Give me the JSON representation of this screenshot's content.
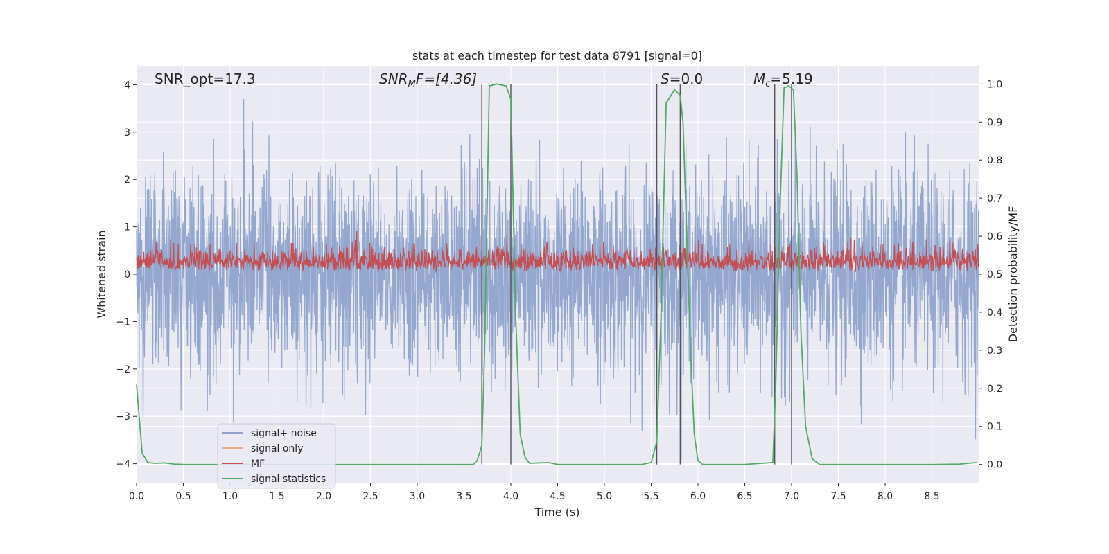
{
  "chart_data": {
    "type": "line",
    "title": "stats at each timestep for test data 8791 [signal=0]",
    "xlabel": "Time (s)",
    "ylabel": "Whitened strain",
    "ylabel_right": "Detection probability/MF",
    "xlim": [
      0.0,
      9.0
    ],
    "ylim": [
      -4.4,
      4.4
    ],
    "ylim_right": [
      -0.048,
      1.048
    ],
    "x_ticks": [
      "0.0",
      "0.5",
      "1.0",
      "1.5",
      "2.0",
      "2.5",
      "3.0",
      "3.5",
      "4.0",
      "4.5",
      "5.0",
      "5.5",
      "6.0",
      "6.5",
      "7.0",
      "7.5",
      "8.0",
      "8.5"
    ],
    "y_ticks": [
      "−4",
      "−3",
      "−2",
      "−1",
      "0",
      "1",
      "2",
      "3",
      "4"
    ],
    "y_ticks_right": [
      "0.0",
      "0.1",
      "0.2",
      "0.3",
      "0.4",
      "0.5",
      "0.6",
      "0.7",
      "0.8",
      "0.9",
      "1.0"
    ],
    "grid": true,
    "legend_position": "lower-left",
    "annotations": {
      "snr_opt": "SNR_opt=17.3",
      "snr_mf_main": "SNR",
      "snr_mf_sub": "M",
      "snr_mf_rest": "F=[4.36]",
      "s_main": "S",
      "s_rest": "=0.0",
      "mc_main": "M",
      "mc_sub": "c",
      "mc_rest": "=5.19"
    },
    "series": [
      {
        "name": "signal+ noise",
        "color": "#8ea3cc",
        "axis": "left",
        "note_render": "dense white-noise trace, |amplitude| up to ~4"
      },
      {
        "name": "signal only",
        "color": "#e9a987",
        "axis": "left",
        "values": []
      },
      {
        "name": "MF",
        "color": "#c44e52",
        "axis": "right",
        "range": [
          0.5,
          0.62
        ]
      },
      {
        "name": "signal statistics",
        "color": "#55a868",
        "axis": "right",
        "x": [
          0.0,
          0.06,
          0.12,
          0.2,
          0.3,
          0.4,
          0.5,
          0.7,
          1.0,
          1.5,
          2.0,
          2.5,
          3.0,
          3.5,
          3.6,
          3.64,
          3.69,
          3.72,
          3.77,
          3.85,
          3.95,
          4.0,
          4.05,
          4.1,
          4.15,
          4.2,
          4.3,
          4.4,
          4.5,
          5.0,
          5.4,
          5.5,
          5.56,
          5.6,
          5.66,
          5.75,
          5.81,
          5.84,
          5.88,
          5.92,
          5.96,
          6.0,
          6.05,
          6.5,
          6.8,
          6.83,
          6.88,
          6.92,
          6.97,
          7.02,
          7.06,
          7.1,
          7.15,
          7.22,
          7.3,
          7.4,
          7.6,
          8.0,
          8.5,
          8.8,
          8.98
        ],
        "values": [
          0.21,
          0.03,
          0.005,
          0.003,
          0.004,
          0.001,
          0.0,
          0.0,
          0.0,
          0.0,
          0.0,
          0.0,
          0.0,
          0.0,
          0.0,
          0.01,
          0.05,
          0.3,
          0.995,
          1.0,
          0.995,
          0.96,
          0.4,
          0.08,
          0.02,
          0.003,
          0.004,
          0.005,
          0.0,
          0.0,
          0.0,
          0.005,
          0.06,
          0.35,
          0.95,
          0.985,
          0.97,
          0.9,
          0.6,
          0.3,
          0.08,
          0.01,
          0.0,
          0.0,
          0.005,
          0.2,
          0.7,
          0.99,
          0.995,
          0.985,
          0.75,
          0.35,
          0.1,
          0.015,
          0.0,
          0.0,
          0.0,
          0.0,
          0.0,
          0.001,
          0.005
        ]
      }
    ],
    "vlines_x": [
      3.69,
      4.0,
      5.56,
      5.81,
      6.82,
      7.0
    ]
  },
  "colors": {
    "plot_bg": "#eaeaf2",
    "grid": "#ffffff",
    "vline": "#555555"
  }
}
